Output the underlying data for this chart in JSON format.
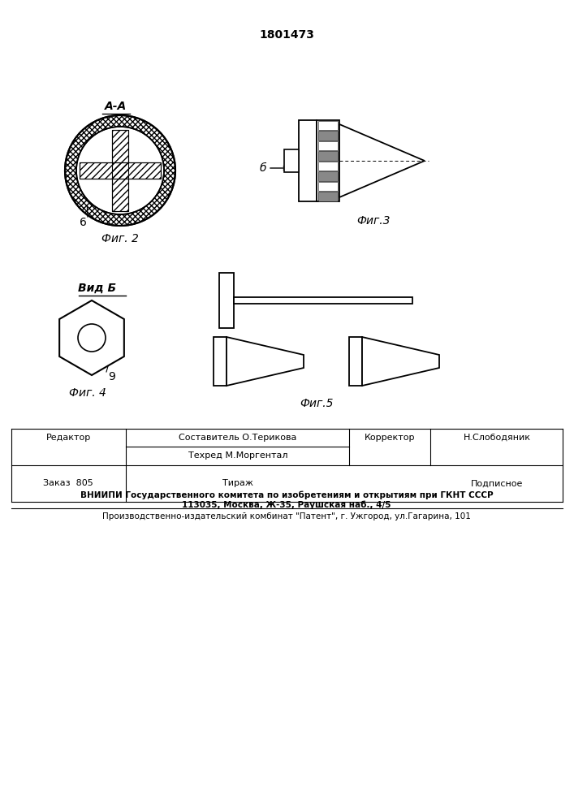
{
  "patent_number": "1801473",
  "fig2_label": "А-А",
  "fig2_caption": "Фиг. 2",
  "fig3_caption": "Фиг.3",
  "fig4_caption": "Фиг. 4",
  "fig5_caption": "Фиг.5",
  "label_b_arrow": "б",
  "label_b2": "Вид Б",
  "label_6": "6",
  "label_9": "9",
  "footer_line1": "Редактор",
  "footer_col2_line1": "Составитель О.Терикова",
  "footer_col2_line2": "Техред М.Моргентал",
  "footer_col3_label": "Корректор",
  "footer_col3_name": "Н.Слободяник",
  "footer_order": "Заказ  805",
  "footer_tirazh": "Тираж",
  "footer_podp": "Подписное",
  "footer_vniipи": "ВНИИПИ Государственного комитета по изобретениям и открытиям при ГКНТ СССР",
  "footer_addr": "113035, Москва, Ж-35, Раушская наб., 4/5",
  "footer_bottom": "Производственно-издательский комбинат \"Патент\", г. Ужгород, ул.Гагарина, 101",
  "bg_color": "#ffffff",
  "lc": "#000000"
}
